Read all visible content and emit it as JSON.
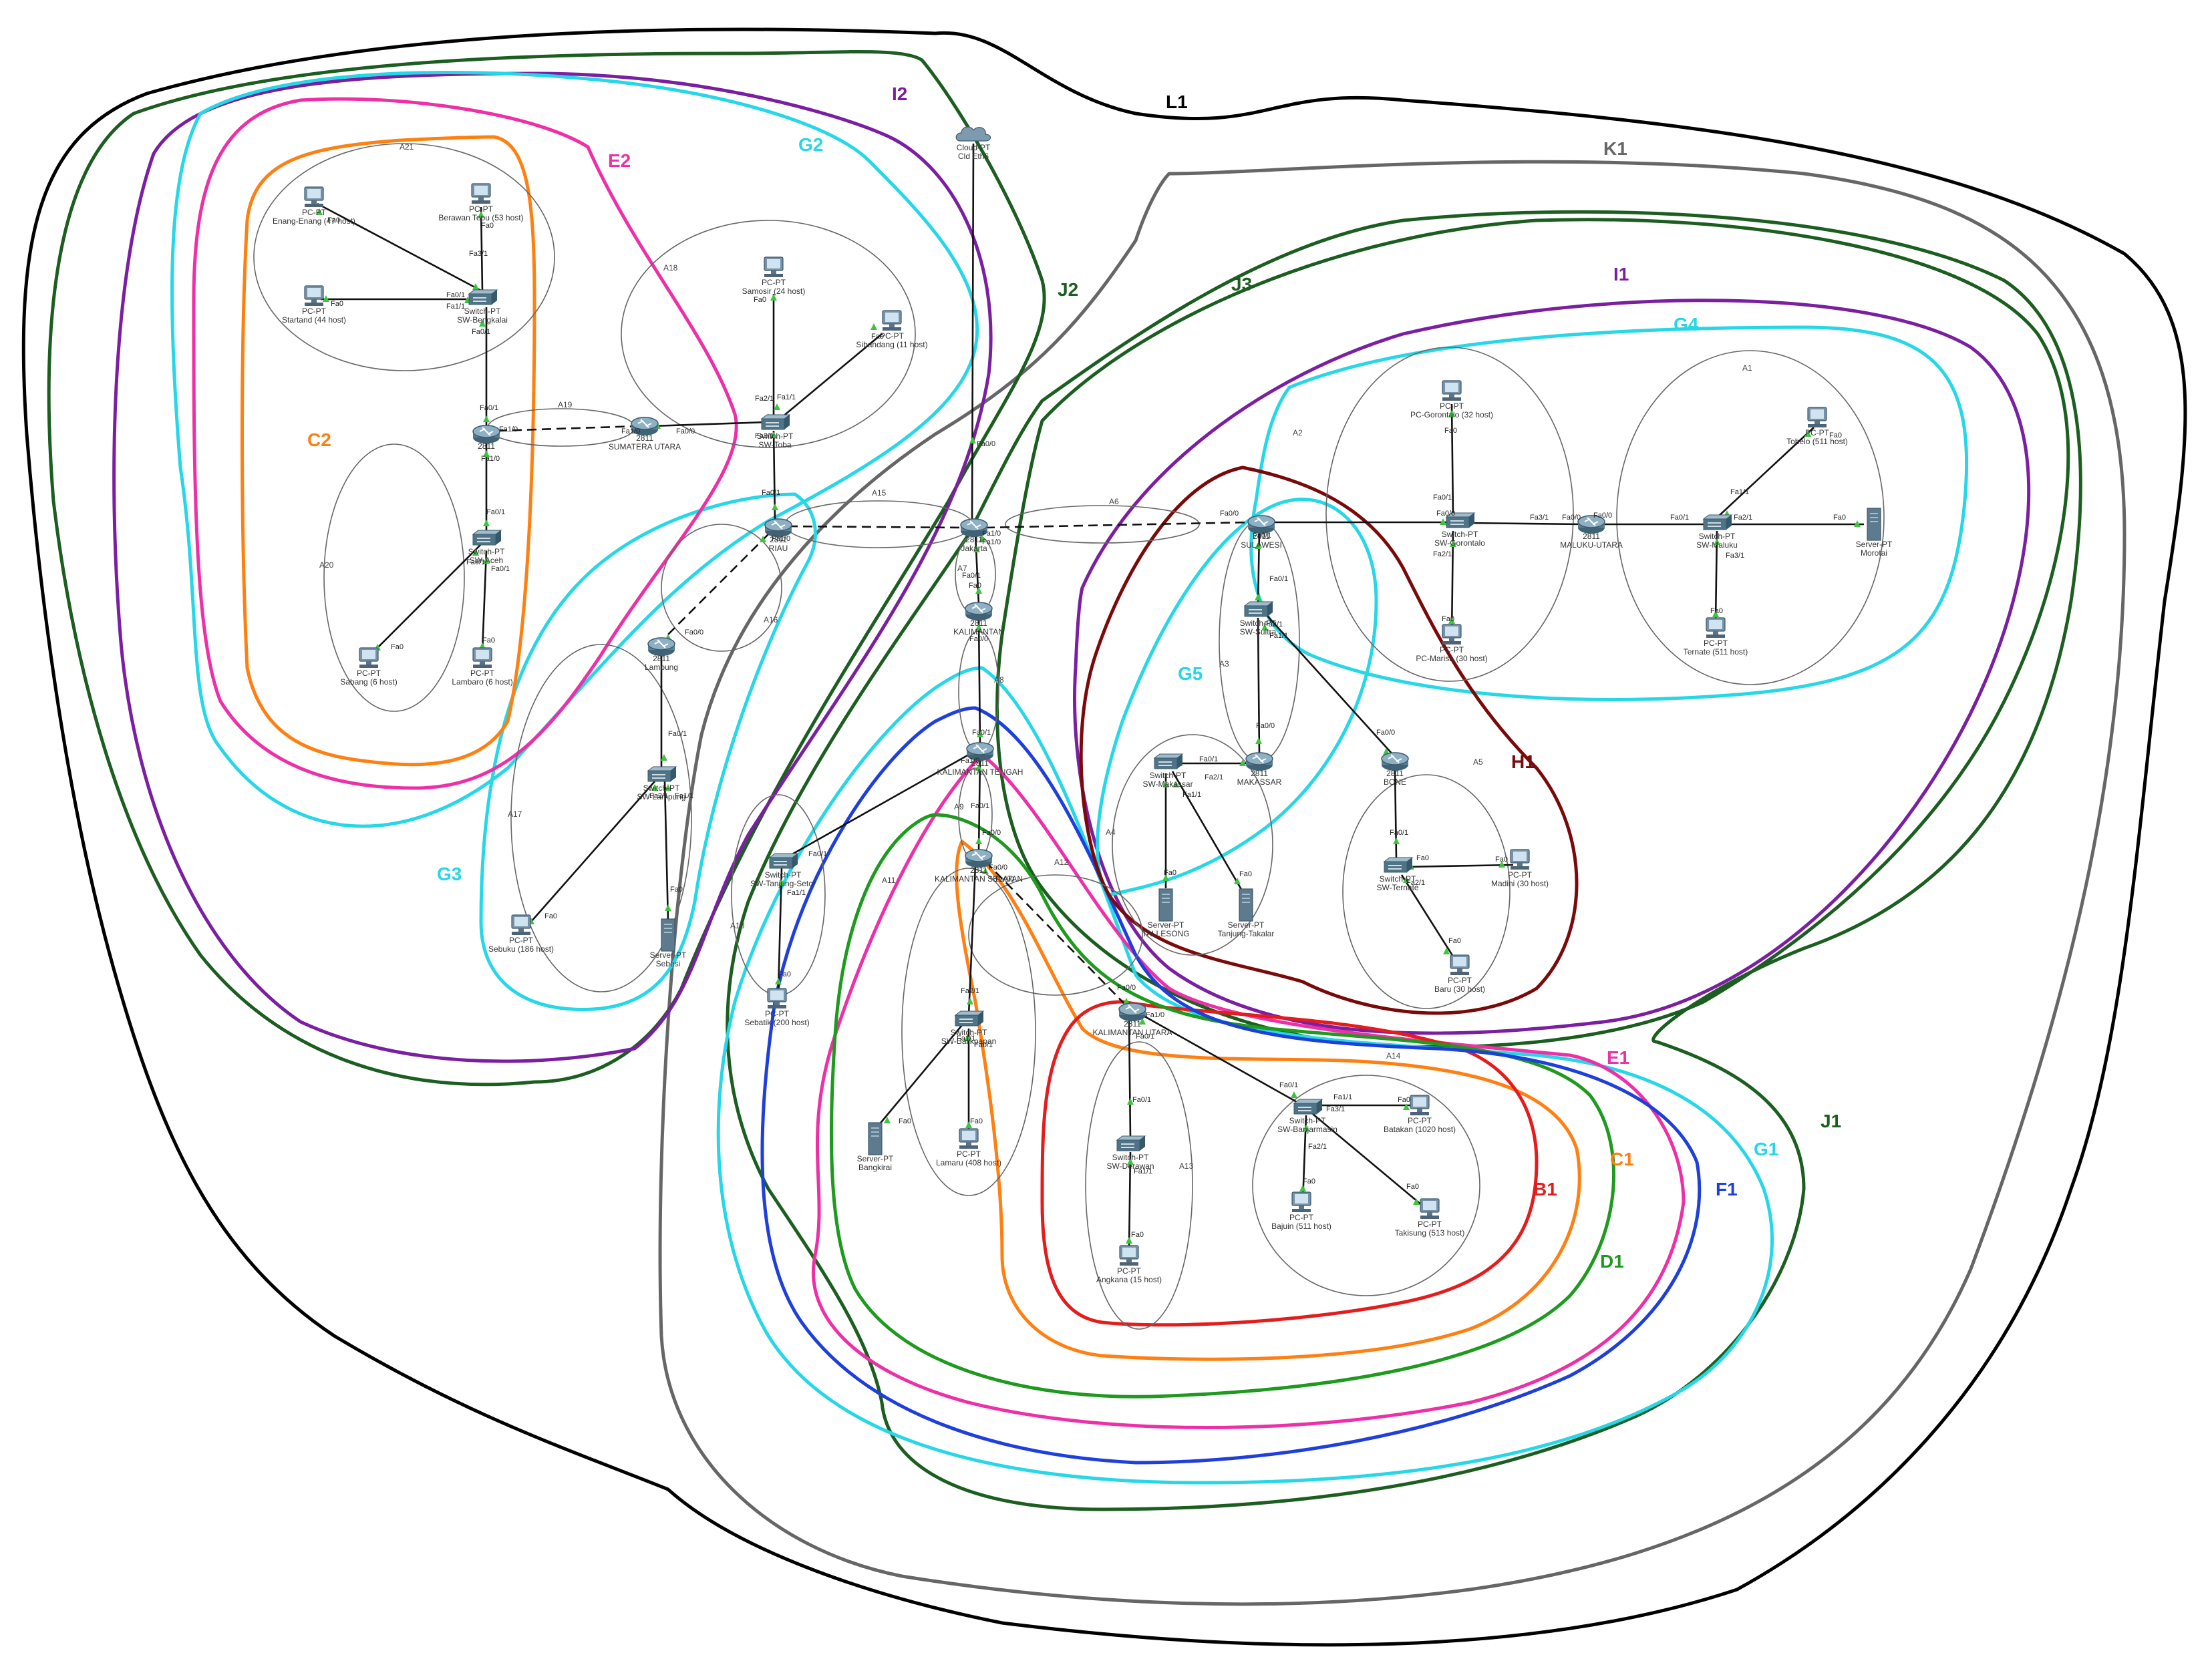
{
  "colors": {
    "L1": "#000000",
    "K1": "#666666",
    "J": "#1b5e20",
    "I": "#7b1fa2",
    "G": "#26d7e8",
    "E": "#ee2fa8",
    "C": "#ff7f11",
    "B1": "#e51c1c",
    "D1": "#1e9a1e",
    "F1": "#1f3fdc",
    "H1": "#7a0a0a",
    "area": "#666666",
    "link": "#111111",
    "port_dot": "#3ec43e",
    "router": "#5b7f96",
    "switch": "#4f7488",
    "pc": "#7791a8",
    "server": "#5d7a8e"
  },
  "ring_labels": {
    "L1": "L1",
    "K1": "K1",
    "J1": "J1",
    "J2": "J2",
    "J3": "J3",
    "I1": "I1",
    "I2": "I2",
    "G1": "G1",
    "G2": "G2",
    "G3": "G3",
    "G4": "G4",
    "G5": "G5",
    "E1": "E1",
    "E2": "E2",
    "C1": "C1",
    "C2": "C2",
    "B1": "B1",
    "D1": "D1",
    "F1": "F1",
    "H1": "H1"
  },
  "areas": [
    "A1",
    "A2",
    "A3",
    "A4",
    "A5",
    "A6",
    "A7",
    "A8",
    "A9",
    "A10",
    "A11",
    "A12",
    "A13",
    "A14",
    "A15",
    "A16",
    "A17",
    "A18",
    "A19",
    "A20",
    "A21"
  ],
  "devices": {
    "cloud": {
      "label": "Cloud-PT",
      "sub": "Cld Eth6"
    },
    "pc_enang": {
      "label": "PC-PT",
      "sub": "Enang-Enang (47 host)"
    },
    "pc_berawan": {
      "label": "PC-PT",
      "sub": "Berawan Tepu (53 host)"
    },
    "pc_startand": {
      "label": "PC-PT",
      "sub": "Startand (44 host)"
    },
    "sw_bengkalai": {
      "label": "Switch-PT",
      "sub": "SW-Bengkalai"
    },
    "r_sumbar": {
      "label": "2811",
      "sub": ""
    },
    "sw_aceh": {
      "label": "Switch-PT",
      "sub": "SW-Aceh"
    },
    "pc_sabang": {
      "label": "PC-PT",
      "sub": "Sabang (6 host)"
    },
    "pc_lambaro": {
      "label": "PC-PT",
      "sub": "Lambaro (6 host)"
    },
    "r_sumut": {
      "label": "2811",
      "sub": "SUMATERA UTARA"
    },
    "pc_samosir": {
      "label": "PC-PT",
      "sub": "Samosir (24 host)"
    },
    "pc_sibandang": {
      "label": "PC-PT",
      "sub": "Sibandang (11 host)"
    },
    "sw_toba": {
      "label": "Switch-PT",
      "sub": "SW-Toba"
    },
    "r_riau": {
      "label": "2811",
      "sub": "RIAU"
    },
    "r_lampung": {
      "label": "2811",
      "sub": "Lampung"
    },
    "sw_lampung": {
      "label": "Switch-PT",
      "sub": "SW-Lampung"
    },
    "pc_sebuku": {
      "label": "PC-PT",
      "sub": "Sebuku (186 host)"
    },
    "srv_sebesi": {
      "label": "Server-PT",
      "sub": "Sebesi"
    },
    "r_core": {
      "label": "2811",
      "sub": "Jakarta"
    },
    "r_kaltim": {
      "label": "2811",
      "sub": "KALIMANTAN"
    },
    "r_kalteng": {
      "label": "2811",
      "sub": "KALIMANTAN TENGAH"
    },
    "r_kalsel": {
      "label": "2811",
      "sub": "KALIMANTAN SELATAN"
    },
    "sw_tanjung": {
      "label": "Switch-PT",
      "sub": "SW-Tanjung-Setor"
    },
    "pc_sebatik": {
      "label": "PC-PT",
      "sub": "Sebatik (200 host)"
    },
    "sw_balikpapan": {
      "label": "Switch-PT",
      "sub": "SW-Balikpapan"
    },
    "srv_bangkirai": {
      "label": "Server-PT",
      "sub": "Bangkirai"
    },
    "pc_lamaru": {
      "label": "PC-PT",
      "sub": "Lamaru (408 host)"
    },
    "r_kalut": {
      "label": "2811",
      "sub": "KALIMANTAN UTARA"
    },
    "sw_derawan": {
      "label": "Switch-PT",
      "sub": "SW-Derawan"
    },
    "pc_angkana": {
      "label": "PC-PT",
      "sub": "Angkana (15 host)"
    },
    "sw_banjarmasin": {
      "label": "Switch-PT",
      "sub": "SW-Banjarmasin"
    },
    "pc_batakan": {
      "label": "PC-PT",
      "sub": "Batakan (1020 host)"
    },
    "pc_bajuin": {
      "label": "PC-PT",
      "sub": "Bajuin (511 host)"
    },
    "pc_takisung": {
      "label": "PC-PT",
      "sub": "Takisung (513 host)"
    },
    "r_sulawesi": {
      "label": "2811",
      "sub": "SULAWESI"
    },
    "pc_gorontalo": {
      "label": "PC-PT",
      "sub": "PC-Gorontalo (32 host)"
    },
    "sw_gorontalo": {
      "label": "Switch-PT",
      "sub": "SW-Gorontalo"
    },
    "pc_marisa": {
      "label": "PC-PT",
      "sub": "PC-Marisa (30 host)"
    },
    "r_malut": {
      "label": "2811",
      "sub": "MALUKU-UTARA"
    },
    "sw_maluku": {
      "label": "Switch-PT",
      "sub": "SW-Maluku"
    },
    "pc_tobelo": {
      "label": "PC-PT",
      "sub": "Tobelo (511 host)"
    },
    "srv_morotai": {
      "label": "Server-PT",
      "sub": "Morotai"
    },
    "pc_ternate": {
      "label": "PC-PT",
      "sub": "Ternate (511 host)"
    },
    "sw_sultra": {
      "label": "Switch-PT",
      "sub": "SW-Sultra"
    },
    "r_makassar": {
      "label": "2811",
      "sub": "MAKASSAR"
    },
    "sw_makassar": {
      "label": "Switch-PT",
      "sub": "SW-Makassar"
    },
    "srv_tallesong": {
      "label": "Server-PT",
      "sub": "TALLESONG"
    },
    "srv_takalar": {
      "label": "Server-PT",
      "sub": "Tanjung-Takalar"
    },
    "r_bone": {
      "label": "2811",
      "sub": "BONE"
    },
    "sw_ternate": {
      "label": "Switch-PT",
      "sub": "SW-Ternate"
    },
    "pc_madini": {
      "label": "PC-PT",
      "sub": "Madini (30 host)"
    },
    "pc_baru": {
      "label": "PC-PT",
      "sub": "Baru (30 host)"
    }
  },
  "ports": [
    "Fa0",
    "Fa0/0",
    "Fa0/1",
    "Fa1/0",
    "Fa1/1",
    "Fa2/1",
    "Fa3/1"
  ]
}
